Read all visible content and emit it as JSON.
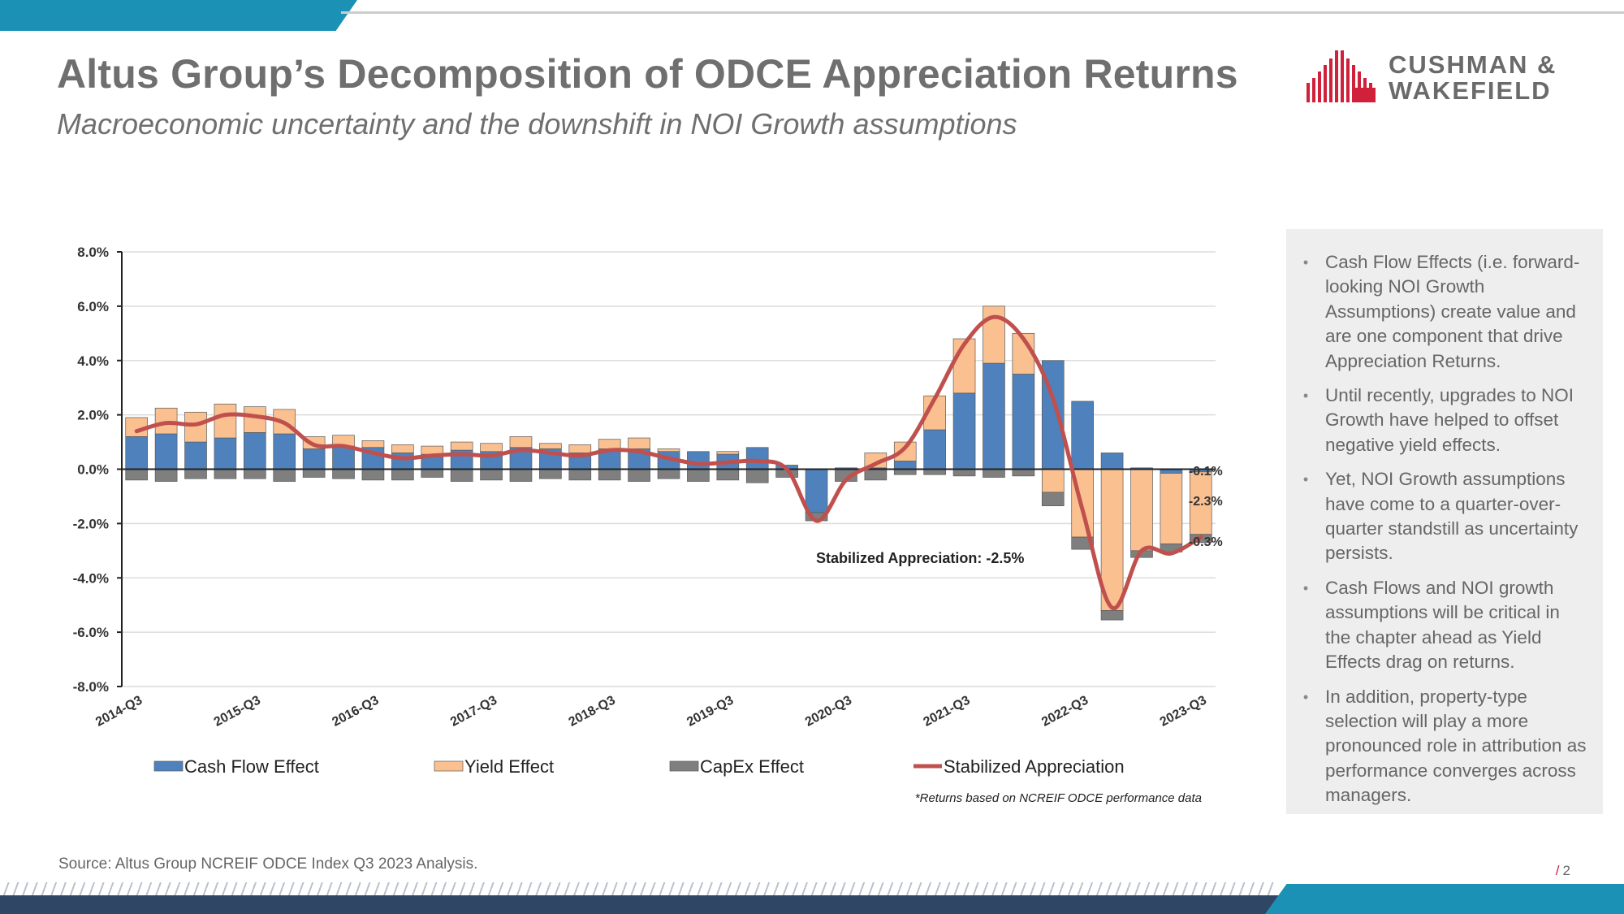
{
  "header": {
    "title": "Altus Group’s Decomposition of ODCE Appreciation Returns",
    "subtitle": "Macroeconomic uncertainty and the downshift in NOI Growth assumptions"
  },
  "logo": {
    "line1": "CUSHMAN &",
    "line2": "WAKEFIELD",
    "brand_color": "#d0203a"
  },
  "panel": {
    "bullets": [
      "Cash Flow Effects (i.e. forward-looking NOI Growth Assumptions) create value and are one component that drive Appreciation Returns.",
      "Until recently, upgrades to NOI Growth have helped to offset negative yield effects.",
      "Yet, NOI Growth assumptions have come to a quarter-over-quarter standstill as uncertainty persists.",
      "Cash Flows and NOI growth assumptions will be critical in the chapter ahead as Yield Effects drag on returns.",
      "In addition, property-type selection will play a more pronounced role in attribution as performance converges across managers."
    ]
  },
  "footer": {
    "source": "Source: Altus Group NCREIF ODCE Index Q3 2023 Analysis.",
    "page_number": "2",
    "page_slash": "/"
  },
  "colors": {
    "accent_teal": "#1b92b5",
    "navy": "#2f4765",
    "cash_flow": "#4f81bd",
    "yield": "#fac090",
    "capex": "#7f7f7f",
    "stabilized": "#c0504d"
  },
  "chart_data": {
    "type": "bar",
    "stacked": true,
    "ylim": [
      -8,
      8
    ],
    "yticks": [
      8,
      6,
      4,
      2,
      0,
      -2,
      -4,
      -6,
      -8
    ],
    "ytick_labels": [
      "8.0%",
      "6.0%",
      "4.0%",
      "2.0%",
      "0.0%",
      "-2.0%",
      "-4.0%",
      "-6.0%",
      "-8.0%"
    ],
    "xtick_labels": [
      "2014-Q3",
      "2015-Q3",
      "2016-Q3",
      "2017-Q3",
      "2018-Q3",
      "2019-Q3",
      "2020-Q3",
      "2021-Q3",
      "2022-Q3",
      "2023-Q3"
    ],
    "xtick_every": 4,
    "grid": true,
    "legend_position": "bottom",
    "categories": [
      "2014-Q3",
      "2014-Q4",
      "2015-Q1",
      "2015-Q2",
      "2015-Q3",
      "2015-Q4",
      "2016-Q1",
      "2016-Q2",
      "2016-Q3",
      "2016-Q4",
      "2017-Q1",
      "2017-Q2",
      "2017-Q3",
      "2017-Q4",
      "2018-Q1",
      "2018-Q2",
      "2018-Q3",
      "2018-Q4",
      "2019-Q1",
      "2019-Q2",
      "2019-Q3",
      "2019-Q4",
      "2020-Q1",
      "2020-Q2",
      "2020-Q3",
      "2020-Q4",
      "2021-Q1",
      "2021-Q2",
      "2021-Q3",
      "2021-Q4",
      "2022-Q1",
      "2022-Q2",
      "2022-Q3",
      "2022-Q4",
      "2023-Q1",
      "2023-Q2",
      "2023-Q3"
    ],
    "series": [
      {
        "name": "Cash Flow Effect",
        "type": "bar",
        "color": "#4f81bd",
        "values": [
          1.2,
          1.3,
          1.0,
          1.15,
          1.35,
          1.3,
          0.75,
          0.85,
          0.8,
          0.6,
          0.55,
          0.7,
          0.65,
          0.8,
          0.75,
          0.6,
          0.75,
          0.75,
          0.65,
          0.65,
          0.55,
          0.8,
          0.15,
          -1.6,
          0.05,
          0.05,
          0.3,
          1.45,
          2.8,
          3.9,
          3.5,
          4.0,
          2.5,
          0.6,
          0.05,
          -0.15,
          -0.1
        ]
      },
      {
        "name": "Yield Effect",
        "type": "bar",
        "color": "#fac090",
        "values": [
          0.7,
          0.95,
          1.1,
          1.25,
          0.95,
          0.9,
          0.45,
          0.4,
          0.25,
          0.3,
          0.3,
          0.3,
          0.3,
          0.4,
          0.2,
          0.3,
          0.35,
          0.4,
          0.1,
          0.0,
          0.1,
          0.0,
          0.0,
          0.0,
          0.0,
          0.55,
          0.7,
          1.25,
          2.0,
          2.1,
          1.5,
          -0.85,
          -2.5,
          -5.2,
          -3.0,
          -2.6,
          -2.3
        ]
      },
      {
        "name": "CapEx Effect",
        "type": "bar",
        "color": "#7f7f7f",
        "values": [
          -0.4,
          -0.45,
          -0.35,
          -0.35,
          -0.35,
          -0.45,
          -0.3,
          -0.35,
          -0.4,
          -0.4,
          -0.3,
          -0.45,
          -0.4,
          -0.45,
          -0.35,
          -0.4,
          -0.4,
          -0.45,
          -0.35,
          -0.45,
          -0.4,
          -0.5,
          -0.3,
          -0.3,
          -0.45,
          -0.4,
          -0.2,
          -0.2,
          -0.25,
          -0.3,
          -0.25,
          -0.5,
          -0.45,
          -0.35,
          -0.25,
          -0.3,
          -0.3
        ]
      },
      {
        "name": "Stabilized Appreciation",
        "type": "line",
        "color": "#c0504d",
        "values": [
          1.4,
          1.7,
          1.65,
          2.0,
          1.95,
          1.7,
          0.9,
          0.85,
          0.6,
          0.4,
          0.5,
          0.55,
          0.5,
          0.7,
          0.6,
          0.5,
          0.7,
          0.65,
          0.4,
          0.2,
          0.25,
          0.3,
          0.0,
          -1.9,
          -0.4,
          0.2,
          0.8,
          2.6,
          4.6,
          5.6,
          4.8,
          2.6,
          -1.5,
          -5.1,
          -3.0,
          -3.1,
          -2.5
        ]
      }
    ],
    "data_labels": [
      "-0.1%",
      "-2.3%",
      "-0.3%"
    ],
    "annotation": "Stabilized Appreciation: -2.5%",
    "footnote": "*Returns based on NCREIF ODCE performance data"
  }
}
